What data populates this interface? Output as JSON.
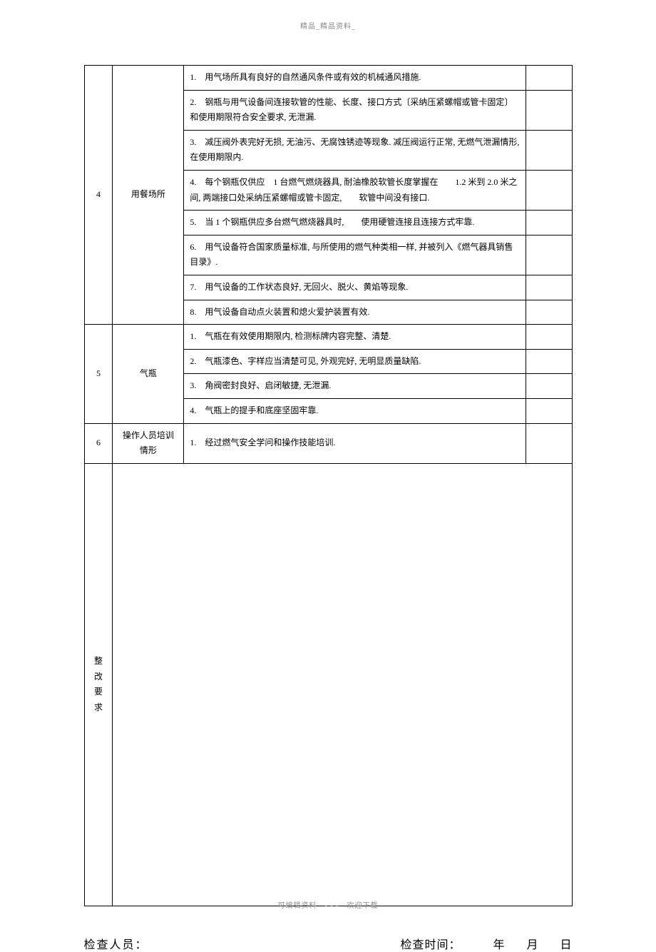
{
  "header": "精品_精品资料_",
  "footer_note": "可编辑资料　- - -　欢迎下载",
  "rows": [
    {
      "num": "4",
      "category": "用餐场所",
      "items": [
        "1.　用气场所具有良好的自然通风条件或有效的机械通风措施.",
        "2.　钢瓶与用气设备间连接软管的性能、长度、接口方式〔采纳压紧螺帽或管卡固定〕和使用期限符合安全要求, 无泄漏.",
        "3.　减压阀外表完好无损, 无油污、无腐蚀锈迹等现象. 减压阀运行正常, 无燃气泄漏情形, 在使用期限内.",
        "4.　每个钢瓶仅供应　1 台燃气燃烧器具, 耐油橡胶软管长度掌握在　　1.2 米到 2.0 米之间, 两端接口处采纳压紧螺帽或管卡固定,　　软管中间没有接口.",
        "5.　当 1 个钢瓶供应多台燃气燃烧器具时,　　使用硬管连接且连接方式牢靠.",
        "6.　用气设备符合国家质量标准, 与所使用的燃气种类相一样, 并被列入《燃气器具销售目录》.",
        "7.　用气设备的工作状态良好, 无回火、脱火、黄焰等现象.",
        "8.　用气设备自动点火装置和熄火爱护装置有效."
      ]
    },
    {
      "num": "5",
      "category": "气瓶",
      "items": [
        "1.　气瓶在有效使用期限内, 检测标牌内容完整、清楚.",
        "2.　气瓶漆色、字样应当清楚可见, 外观完好, 无明显质量缺陷.",
        "3.　角阀密封良好、启闭敏捷, 无泄漏.",
        "4.　气瓶上的提手和底座坚固牢靠."
      ]
    },
    {
      "num": "6",
      "category": "操作人员培训情形",
      "items": [
        "1.　经过燃气安全学问和操作技能培训."
      ]
    }
  ],
  "reform_label": "整改要求",
  "signature": {
    "inspector_label": "检查人员：",
    "time_label": "检查时间：",
    "year": "年",
    "month": "月",
    "day": "日"
  }
}
